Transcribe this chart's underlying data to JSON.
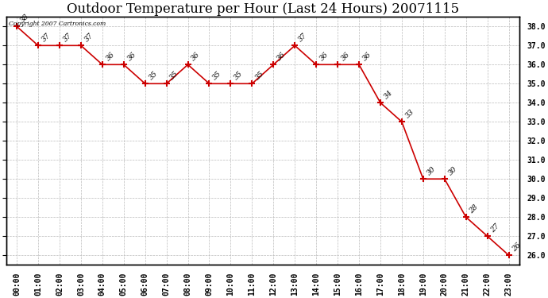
{
  "title": "Outdoor Temperature per Hour (Last 24 Hours) 20071115",
  "copyright_text": "Copyright 2007 Cartronics.com",
  "hours": [
    "00:00",
    "01:00",
    "02:00",
    "03:00",
    "04:00",
    "05:00",
    "06:00",
    "07:00",
    "08:00",
    "09:00",
    "10:00",
    "11:00",
    "12:00",
    "13:00",
    "14:00",
    "15:00",
    "16:00",
    "17:00",
    "18:00",
    "19:00",
    "20:00",
    "21:00",
    "22:00",
    "23:00"
  ],
  "temperatures": [
    38,
    37,
    37,
    37,
    36,
    36,
    35,
    35,
    36,
    35,
    35,
    35,
    36,
    37,
    36,
    36,
    36,
    34,
    33,
    30,
    30,
    28,
    27,
    26
  ],
  "line_color": "#cc0000",
  "marker_color": "#cc0000",
  "bg_color": "#ffffff",
  "grid_color": "#bbbbbb",
  "ylim_min": 25.5,
  "ylim_max": 38.5,
  "ytick_min": 26.0,
  "ytick_max": 38.0,
  "ytick_step": 1.0,
  "title_fontsize": 12,
  "label_fontsize": 7,
  "annot_fontsize": 6.5
}
